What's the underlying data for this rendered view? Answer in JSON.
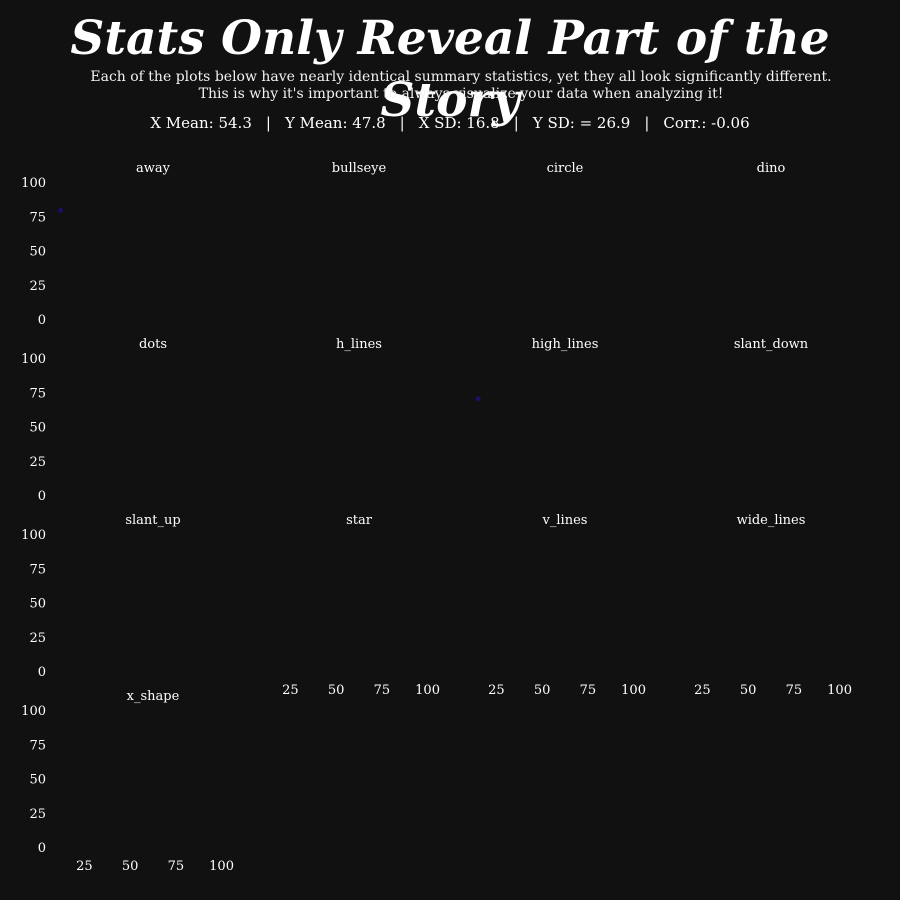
{
  "title": "Stats Only Reveal Part of the Story",
  "subtitle": [
    "Each of the plots below have nearly identical summary statistics, yet they all look significantly different.",
    "This is why it's important to always visualize your data when analyzing it!"
  ],
  "stats": [
    "X Mean: 54.3",
    "Y Mean: 47.8",
    "X SD: 16.8",
    "Y SD: = 26.9",
    "Corr.: -0.06"
  ],
  "stats_separator": "|",
  "colors": {
    "background": "#111111",
    "text": "#ffffff",
    "point": "#1a1066"
  },
  "chart_data": {
    "type": "scatter",
    "layout": "small-multiples 4x4 (13 panels)",
    "xlim": [
      10,
      115
    ],
    "ylim": [
      0,
      100
    ],
    "x_ticks": [
      25,
      50,
      75,
      100
    ],
    "y_ticks": [
      0,
      25,
      50,
      75,
      100
    ],
    "grid": false,
    "panels": [
      {
        "name": "away",
        "points": [
          [
            12,
            80
          ]
        ]
      },
      {
        "name": "bullseye",
        "points": []
      },
      {
        "name": "circle",
        "points": []
      },
      {
        "name": "dino",
        "points": []
      },
      {
        "name": "dots",
        "points": []
      },
      {
        "name": "h_lines",
        "points": []
      },
      {
        "name": "high_lines",
        "points": [
          [
            15,
            71
          ]
        ]
      },
      {
        "name": "slant_down",
        "points": []
      },
      {
        "name": "slant_up",
        "points": []
      },
      {
        "name": "star",
        "points": []
      },
      {
        "name": "v_lines",
        "points": []
      },
      {
        "name": "wide_lines",
        "points": []
      },
      {
        "name": "x_shape",
        "points": []
      }
    ]
  }
}
